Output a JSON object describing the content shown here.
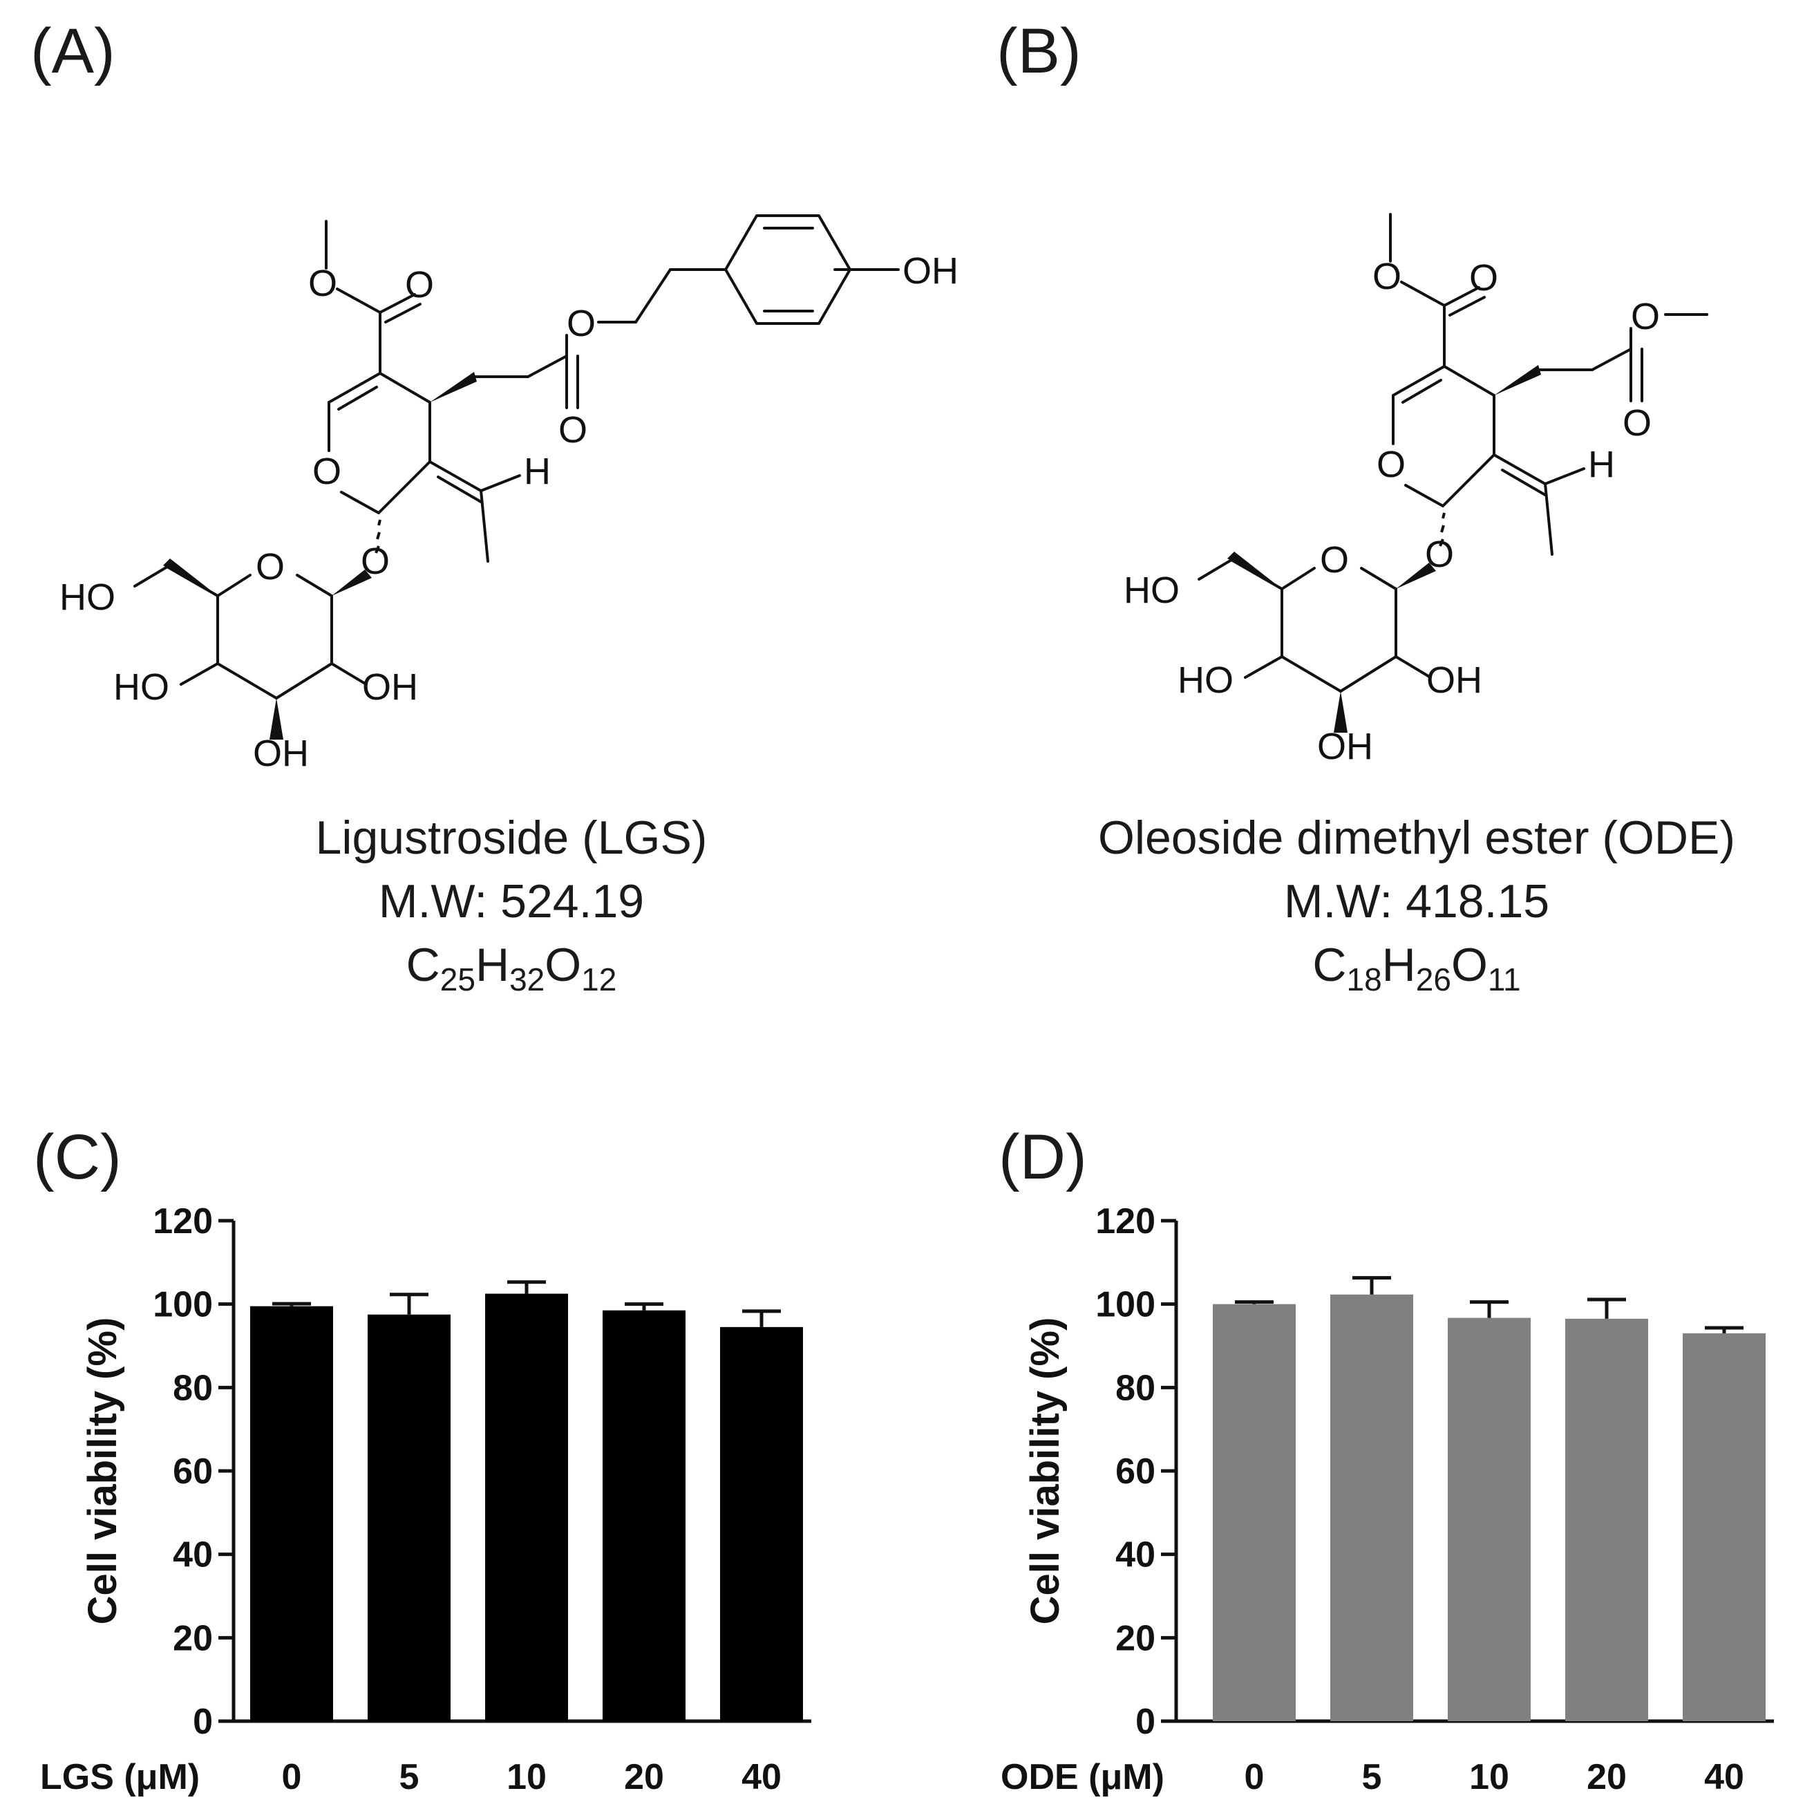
{
  "panels": {
    "a": {
      "label": "(A)",
      "compound_name": "Ligustroside (LGS)",
      "mw": "M.W: 524.19",
      "formula": [
        {
          "el": "C",
          "n": "25"
        },
        {
          "el": "H",
          "n": "32"
        },
        {
          "el": "O",
          "n": "12"
        }
      ]
    },
    "b": {
      "label": "(B)",
      "compound_name": "Oleoside dimethyl ester (ODE)",
      "mw": "M.W: 418.15",
      "formula": [
        {
          "el": "C",
          "n": "18"
        },
        {
          "el": "H",
          "n": "26"
        },
        {
          "el": "O",
          "n": "11"
        }
      ]
    },
    "c": {
      "label": "(C)"
    },
    "d": {
      "label": "(D)"
    }
  },
  "atoms": {
    "oh": "OH",
    "ho": "HO",
    "o": "O",
    "h": "H"
  },
  "chart_data": [
    {
      "type": "bar",
      "panel": "C",
      "categories": [
        "0",
        "5",
        "10",
        "20",
        "40"
      ],
      "values": [
        99.5,
        97.5,
        102.5,
        98.5,
        94.5
      ],
      "errors": [
        0.6,
        4.8,
        2.8,
        1.5,
        3.8
      ],
      "xlabel": "LGS (μM)",
      "ylabel": "Cell viability (%)",
      "ylim": [
        0,
        120
      ],
      "yticks": [
        "0",
        "20",
        "40",
        "60",
        "80",
        "100",
        "120"
      ],
      "bar_color": "#000000"
    },
    {
      "type": "bar",
      "panel": "D",
      "categories": [
        "0",
        "5",
        "10",
        "20",
        "40"
      ],
      "values": [
        100,
        102.3,
        96.7,
        96.5,
        93
      ],
      "errors": [
        0.5,
        4.0,
        3.8,
        4.6,
        1.3
      ],
      "xlabel": "ODE (μM)",
      "ylabel": "Cell viability (%)",
      "ylim": [
        0,
        120
      ],
      "yticks": [
        "0",
        "20",
        "40",
        "60",
        "80",
        "100",
        "120"
      ],
      "bar_color": "#808080"
    }
  ]
}
